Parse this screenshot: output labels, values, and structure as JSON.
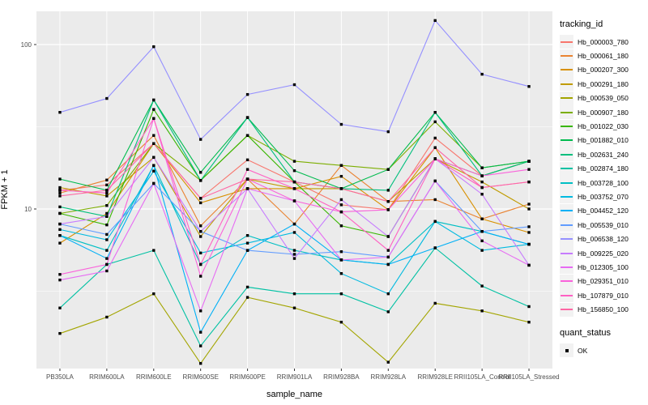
{
  "chart_data": {
    "type": "line",
    "title": "",
    "xlabel": "sample_name",
    "ylabel": "FPKM + 1",
    "y_scale": "log10",
    "ylim": [
      1.03,
      163
    ],
    "y_ticks": [
      100,
      10
    ],
    "y_minor": [
      31.62,
      3.162
    ],
    "grid": true,
    "legend_position": "right",
    "legend_title": "tracking_id",
    "legend2_title": "quant_status",
    "legend2_items": [
      {
        "label": "OK",
        "marker": "black-square"
      }
    ],
    "point_marker": "black-square",
    "panel_bg": "#EBEBEB",
    "grid_color": "#FFFFFF",
    "tick_label_color": "#4D4D4D",
    "categories": [
      "PB350LA",
      "RRIM600LA",
      "RRIM600LE",
      "RRIM600SE",
      "RRIM600PE",
      "RRIM901LA",
      "RRIM928BA",
      "RRIM928LA",
      "RRIM928LE",
      "RRII105LA_Control",
      "RRII105LA_Stressed"
    ],
    "series": [
      {
        "name": "Hb_000003_780",
        "color": "#F8766D",
        "values": [
          13.0,
          14.0,
          25.0,
          11.6,
          19.9,
          14.6,
          10.6,
          9.9,
          27.0,
          15.9,
          19.5
        ]
      },
      {
        "name": "Hb_000061_180",
        "color": "#EA8331",
        "values": [
          12.5,
          15.0,
          28.0,
          7.9,
          15.2,
          8.1,
          18.4,
          11.1,
          11.4,
          8.7,
          10.7
        ]
      },
      {
        "name": "Hb_000207_300",
        "color": "#D89000",
        "values": [
          6.2,
          9.4,
          25.0,
          10.9,
          13.3,
          13.3,
          15.8,
          9.9,
          23.6,
          8.7,
          7.2
        ]
      },
      {
        "name": "Hb_000291_180",
        "color": "#C09B00",
        "values": [
          13.5,
          12.0,
          20.6,
          6.8,
          15.2,
          13.3,
          13.3,
          11.1,
          20.2,
          14.6,
          10.0
        ]
      },
      {
        "name": "Hb_000539_050",
        "color": "#A3A500",
        "values": [
          1.75,
          2.2,
          3.05,
          1.15,
          2.9,
          2.5,
          2.05,
          1.17,
          2.67,
          2.4,
          2.05
        ]
      },
      {
        "name": "Hb_000907_180",
        "color": "#7CAE00",
        "values": [
          9.4,
          10.5,
          25.0,
          14.9,
          28.0,
          19.5,
          18.4,
          17.4,
          33.9,
          17.8,
          19.5
        ]
      },
      {
        "name": "Hb_001022_030",
        "color": "#39B600",
        "values": [
          9.4,
          8.0,
          40.3,
          14.9,
          28.0,
          14.6,
          7.9,
          6.8,
          20.2,
          15.9,
          19.5
        ]
      },
      {
        "name": "Hb_001882_010",
        "color": "#00BB4E",
        "values": [
          15.2,
          13.0,
          46.0,
          16.7,
          36.0,
          17.1,
          13.3,
          17.4,
          38.7,
          17.8,
          19.5
        ]
      },
      {
        "name": "Hb_002631_240",
        "color": "#00BF7D",
        "values": [
          10.3,
          9.0,
          46.0,
          14.9,
          36.0,
          14.6,
          13.3,
          13.0,
          38.7,
          15.9,
          19.5
        ]
      },
      {
        "name": "Hb_002874_180",
        "color": "#00C1A3",
        "values": [
          2.5,
          4.6,
          5.6,
          1.47,
          3.35,
          3.05,
          3.05,
          2.37,
          5.8,
          3.4,
          2.55
        ]
      },
      {
        "name": "Hb_003728_100",
        "color": "#00BFC4",
        "values": [
          6.9,
          5.6,
          18.4,
          4.6,
          6.9,
          5.6,
          4.9,
          4.6,
          8.4,
          7.3,
          6.1
        ]
      },
      {
        "name": "Hb_003752_070",
        "color": "#00BAE0",
        "values": [
          7.5,
          6.5,
          17.0,
          5.4,
          6.2,
          7.2,
          4.05,
          3.05,
          8.4,
          5.6,
          6.1
        ]
      },
      {
        "name": "Hb_004452_120",
        "color": "#00B0F6",
        "values": [
          6.9,
          5.0,
          18.4,
          1.78,
          5.6,
          8.1,
          4.9,
          4.6,
          5.8,
          7.3,
          6.1
        ]
      },
      {
        "name": "Hb_005539_010",
        "color": "#619CFF",
        "values": [
          8.1,
          7.0,
          14.3,
          7.3,
          5.6,
          5.3,
          5.5,
          5.1,
          14.8,
          7.3,
          7.8
        ]
      },
      {
        "name": "Hb_006538_120",
        "color": "#9590FF",
        "values": [
          38.7,
          47.0,
          97.0,
          26.5,
          49.7,
          57.0,
          32.7,
          29.5,
          140.0,
          66.0,
          55.6
        ]
      },
      {
        "name": "Hb_009225_020",
        "color": "#C77CFF",
        "values": [
          8.1,
          9.0,
          20.6,
          7.3,
          13.3,
          5.0,
          11.4,
          6.8,
          20.2,
          12.3,
          4.55
        ]
      },
      {
        "name": "Hb_012305_100",
        "color": "#E76BF3",
        "values": [
          3.7,
          4.2,
          14.3,
          2.4,
          13.3,
          11.2,
          4.9,
          5.1,
          14.8,
          6.4,
          4.55
        ]
      },
      {
        "name": "Hb_029351_010",
        "color": "#FA62DB",
        "values": [
          4.0,
          4.6,
          35.5,
          3.9,
          15.2,
          11.2,
          9.6,
          9.9,
          20.2,
          15.9,
          17.4
        ]
      },
      {
        "name": "Hb_107879_010",
        "color": "#FF61C3",
        "values": [
          13.0,
          12.5,
          35.5,
          4.6,
          17.4,
          13.3,
          9.6,
          5.6,
          20.2,
          13.5,
          14.6
        ]
      },
      {
        "name": "Hb_156850_100",
        "color": "#FF67A4",
        "values": [
          12.0,
          13.0,
          25.0,
          11.6,
          15.2,
          14.6,
          13.3,
          11.1,
          23.6,
          13.5,
          14.6
        ]
      }
    ]
  }
}
